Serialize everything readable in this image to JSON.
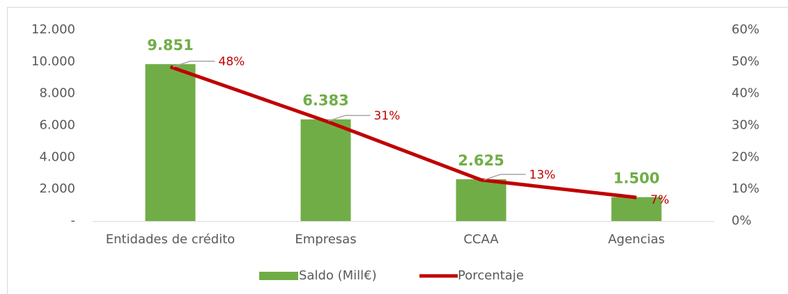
{
  "chart_data": {
    "type": "bar-line",
    "categories": [
      "Entidades de crédito",
      "Empresas",
      "CCAA",
      "Agencias"
    ],
    "series": [
      {
        "name": "Saldo (Mill€)",
        "type": "bar",
        "color": "#70ad47",
        "values": [
          9851,
          6383,
          2625,
          1500
        ],
        "value_labels": [
          "9.851",
          "6.383",
          "2.625",
          "1.500"
        ]
      },
      {
        "name": "Porcentaje",
        "type": "line",
        "axis": "y2",
        "color": "#c00000",
        "values": [
          48.4,
          31.4,
          12.9,
          7.4
        ],
        "value_labels": [
          "48%",
          "31%",
          "13%",
          "7%"
        ]
      }
    ],
    "ylim": [
      0,
      12000
    ],
    "yticks": [
      {
        "value": 0,
        "label": "-"
      },
      {
        "value": 2000,
        "label": "2.000"
      },
      {
        "value": 4000,
        "label": "4.000"
      },
      {
        "value": 6000,
        "label": "6.000"
      },
      {
        "value": 8000,
        "label": "8.000"
      },
      {
        "value": 10000,
        "label": "10.000"
      },
      {
        "value": 12000,
        "label": "12.000"
      }
    ],
    "y2lim": [
      0,
      60
    ],
    "y2ticks": [
      {
        "value": 0,
        "label": "0%"
      },
      {
        "value": 10,
        "label": "10%"
      },
      {
        "value": 20,
        "label": "20%"
      },
      {
        "value": 30,
        "label": "30%"
      },
      {
        "value": 40,
        "label": "40%"
      },
      {
        "value": 50,
        "label": "50%"
      },
      {
        "value": 60,
        "label": "60%"
      }
    ],
    "legend": "bottom"
  }
}
